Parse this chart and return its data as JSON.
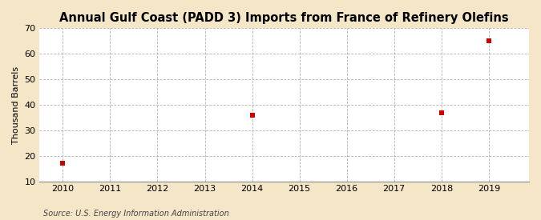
{
  "title": "Annual Gulf Coast (PADD 3) Imports from France of Refinery Olefins",
  "ylabel": "Thousand Barrels",
  "source": "Source: U.S. Energy Information Administration",
  "figure_bg_color": "#f5e6c8",
  "plot_bg_color": "#ffffff",
  "data_x": [
    2010,
    2014,
    2018,
    2019
  ],
  "data_y": [
    17,
    36,
    37,
    65
  ],
  "marker_color": "#cc0000",
  "marker_size": 4,
  "xlim": [
    2009.5,
    2019.85
  ],
  "ylim": [
    10,
    70
  ],
  "yticks": [
    10,
    20,
    30,
    40,
    50,
    60,
    70
  ],
  "xticks": [
    2010,
    2011,
    2012,
    2013,
    2014,
    2015,
    2016,
    2017,
    2018,
    2019
  ],
  "grid_color": "#aaaaaa",
  "title_fontsize": 10.5,
  "axis_fontsize": 8,
  "tick_fontsize": 8,
  "source_fontsize": 7
}
